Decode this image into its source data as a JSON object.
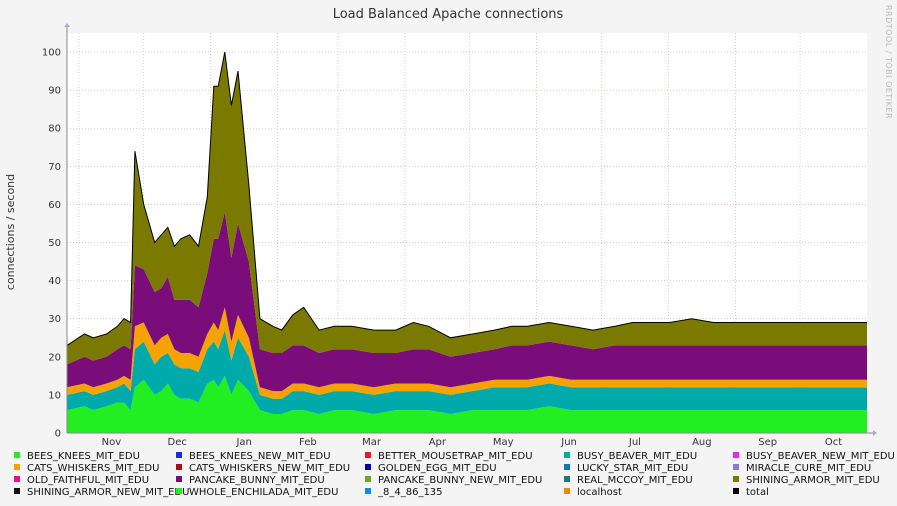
{
  "chart_data": {
    "type": "area",
    "title": "Load Balanced Apache connections",
    "ylabel": "connections / second",
    "watermark": "RRDTOOL / TOBI OETIKER",
    "ylim": [
      0,
      105
    ],
    "yticks": [
      0,
      10,
      20,
      30,
      40,
      50,
      60,
      70,
      80,
      90,
      100
    ],
    "xticks": [
      "Nov",
      "Dec",
      "Jan",
      "Feb",
      "Mar",
      "Apr",
      "May",
      "Jun",
      "Jul",
      "Aug",
      "Sep",
      "Oct"
    ],
    "grid": true,
    "legend_position": "bottom",
    "colors": {
      "background": "#f4f4f4",
      "plot": "#ffffff",
      "grid": "#e8a0a0",
      "whole_enchilada": "#22ee22",
      "busy_beaver": "#00aaaa",
      "cats_whiskers": "#f5a300",
      "pancake_bunny": "#7b0d7b",
      "shining_armor": "#7a7a00",
      "total": "#000000"
    },
    "legend": [
      {
        "label": "BEES_KNEES_MIT_EDU",
        "color": "#22ee22"
      },
      {
        "label": "BEES_KNEES_NEW_MIT_EDU",
        "color": "#1c2fd6"
      },
      {
        "label": "BETTER_MOUSETRAP_MIT_EDU",
        "color": "#e81e1e"
      },
      {
        "label": "BUSY_BEAVER_MIT_EDU",
        "color": "#00aaaa"
      },
      {
        "label": "BUSY_BEAVER_NEW_MIT_EDU",
        "color": "#ee22ee"
      },
      {
        "label": "CATS_WHISKERS_MIT_EDU",
        "color": "#f5a300"
      },
      {
        "label": "CATS_WHISKERS_NEW_MIT_EDU",
        "color": "#aa1111"
      },
      {
        "label": "GOLDEN_EGG_MIT_EDU",
        "color": "#0000a8"
      },
      {
        "label": "LUCKY_STAR_MIT_EDU",
        "color": "#1177bb"
      },
      {
        "label": "MIRACLE_CURE_MIT_EDU",
        "color": "#8877dd"
      },
      {
        "label": "OLD_FAITHFUL_MIT_EDU",
        "color": "#ee1177"
      },
      {
        "label": "PANCAKE_BUNNY_MIT_EDU",
        "color": "#7b0d7b"
      },
      {
        "label": "PANCAKE_BUNNY_NEW_MIT_EDU",
        "color": "#66aa22"
      },
      {
        "label": "REAL_MCCOY_MIT_EDU",
        "color": "#227777"
      },
      {
        "label": "SHINING_ARMOR_MIT_EDU",
        "color": "#7a7a00"
      },
      {
        "label": "SHINING_ARMOR_NEW_MIT_EDU",
        "color": "#111111"
      },
      {
        "label": "WHOLE_ENCHILADA_MIT_EDU",
        "color": "#22ee22"
      },
      {
        "label": "_8_4_86_135",
        "color": "#1188ee"
      },
      {
        "label": "localhost",
        "color": "#ee8811"
      },
      {
        "label": "total",
        "color": "#000000"
      }
    ],
    "x": [
      0,
      8,
      12,
      18,
      23,
      26,
      29,
      31,
      35,
      40,
      43,
      46,
      49,
      52,
      56,
      60,
      64,
      67,
      69,
      72,
      75,
      78,
      83,
      88,
      94,
      98,
      103,
      108,
      115,
      122,
      130,
      140,
      150,
      158,
      165,
      175,
      185,
      195,
      203,
      210,
      220,
      230,
      240,
      250,
      258,
      265,
      275,
      285,
      295,
      305,
      315,
      325,
      335,
      342,
      348,
      355,
      365
    ],
    "series": [
      {
        "name": "WHOLE_ENCHILADA_MIT_EDU",
        "values": [
          6,
          7,
          6,
          7,
          8,
          8,
          6,
          12,
          14,
          10,
          11,
          13,
          10,
          9,
          9,
          8,
          13,
          14,
          12,
          15,
          10,
          14,
          11,
          6,
          5,
          5,
          6,
          6,
          5,
          6,
          6,
          5,
          6,
          6,
          6,
          5,
          6,
          6,
          6,
          6,
          7,
          6,
          6,
          6,
          6,
          6,
          6,
          6,
          6,
          6,
          6,
          6,
          6,
          6,
          6,
          6,
          6
        ]
      },
      {
        "name": "BUSY_BEAVER_MIT_EDU",
        "values": [
          4,
          4,
          4,
          4,
          4,
          5,
          5,
          10,
          10,
          8,
          9,
          8,
          8,
          8,
          8,
          8,
          9,
          10,
          10,
          12,
          9,
          11,
          9,
          4,
          4,
          4,
          5,
          5,
          5,
          5,
          5,
          5,
          5,
          5,
          5,
          5,
          5,
          6,
          6,
          6,
          6,
          6,
          6,
          6,
          6,
          6,
          6,
          6,
          6,
          6,
          6,
          6,
          6,
          6,
          6,
          6,
          6
        ]
      },
      {
        "name": "CATS_WHISKERS_MIT_EDU",
        "values": [
          2,
          2,
          2,
          2,
          2,
          2,
          3,
          6,
          5,
          5,
          5,
          5,
          4,
          4,
          4,
          4,
          4,
          5,
          5,
          6,
          5,
          6,
          5,
          2,
          2,
          2,
          2,
          2,
          2,
          2,
          2,
          2,
          2,
          2,
          2,
          2,
          2,
          2,
          2,
          2,
          2,
          2,
          2,
          2,
          2,
          2,
          2,
          2,
          2,
          2,
          2,
          2,
          2,
          2,
          2,
          2,
          2
        ]
      },
      {
        "name": "PANCAKE_BUNNY_MIT_EDU",
        "values": [
          6,
          7,
          7,
          7,
          8,
          8,
          8,
          16,
          14,
          14,
          13,
          15,
          13,
          14,
          14,
          13,
          16,
          22,
          24,
          25,
          22,
          24,
          20,
          10,
          10,
          10,
          10,
          10,
          9,
          9,
          9,
          9,
          8,
          9,
          9,
          8,
          8,
          8,
          9,
          9,
          9,
          9,
          8,
          9,
          9,
          9,
          9,
          9,
          9,
          9,
          9,
          9,
          9,
          9,
          9,
          9,
          9
        ]
      },
      {
        "name": "SHINING_ARMOR_MIT_EDU",
        "values": [
          5,
          6,
          6,
          6,
          6,
          7,
          7,
          30,
          17,
          13,
          14,
          13,
          14,
          16,
          17,
          16,
          20,
          40,
          40,
          42,
          40,
          40,
          20,
          8,
          7,
          6,
          8,
          10,
          6,
          6,
          6,
          6,
          6,
          7,
          6,
          5,
          5,
          5,
          5,
          5,
          5,
          5,
          5,
          5,
          6,
          6,
          6,
          7,
          6,
          6,
          6,
          6,
          6,
          6,
          6,
          6,
          6
        ]
      }
    ],
    "total_values": [
      23,
      26,
      25,
      26,
      28,
      30,
      29,
      74,
      60,
      50,
      52,
      54,
      49,
      51,
      52,
      49,
      62,
      91,
      91,
      100,
      86,
      95,
      65,
      30,
      28,
      27,
      31,
      33,
      27,
      28,
      28,
      27,
      27,
      29,
      28,
      25,
      26,
      27,
      28,
      28,
      29,
      28,
      27,
      28,
      29,
      29,
      29,
      30,
      29,
      29,
      29,
      29,
      29,
      29,
      29,
      29,
      29
    ]
  }
}
